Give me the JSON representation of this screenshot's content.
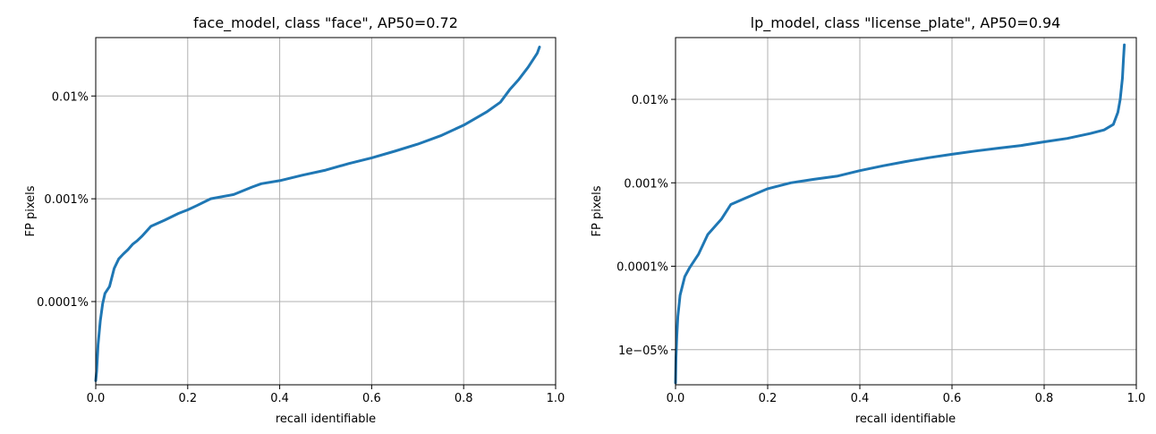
{
  "chart_data": [
    {
      "type": "line",
      "title": "face_model, class \"face\", AP50=0.72",
      "xlabel": "recall identifiable",
      "ylabel": "FP pixels",
      "xlim": [
        0.0,
        1.0
      ],
      "ylim": [
        1.55e-07,
        0.00037
      ],
      "yscale": "log",
      "grid": true,
      "line_color": "#1f77b4",
      "xticks": [
        0.0,
        0.2,
        0.4,
        0.6,
        0.8,
        1.0
      ],
      "xtick_labels": [
        "0.0",
        "0.2",
        "0.4",
        "0.6",
        "0.8",
        "1.0"
      ],
      "yticks": [
        1e-06,
        1e-05,
        0.0001
      ],
      "ytick_labels": [
        "0.0001%",
        "0.001%",
        "0.01%"
      ],
      "series": [
        {
          "x": [
            0.0,
            0.002,
            0.005,
            0.01,
            0.015,
            0.02,
            0.03,
            0.04,
            0.05,
            0.06,
            0.07,
            0.08,
            0.09,
            0.1,
            0.12,
            0.15,
            0.18,
            0.2,
            0.22,
            0.25,
            0.3,
            0.34,
            0.36,
            0.4,
            0.45,
            0.5,
            0.55,
            0.6,
            0.65,
            0.7,
            0.75,
            0.8,
            0.85,
            0.88,
            0.9,
            0.92,
            0.94,
            0.96,
            0.965
          ],
          "y": [
            1.7e-07,
            2.1e-07,
            3.8e-07,
            6.5e-07,
            9.5e-07,
            1.2e-06,
            1.4e-06,
            2.1e-06,
            2.6e-06,
            2.9e-06,
            3.2e-06,
            3.6e-06,
            3.9e-06,
            4.3e-06,
            5.4e-06,
            6.2e-06,
            7.2e-06,
            7.8e-06,
            8.6e-06,
            1e-05,
            1.1e-05,
            1.3e-05,
            1.4e-05,
            1.5e-05,
            1.7e-05,
            1.9e-05,
            2.2e-05,
            2.5e-05,
            2.9e-05,
            3.4e-05,
            4.1e-05,
            5.2e-05,
            7e-05,
            8.7e-05,
            0.000115,
            0.000145,
            0.00019,
            0.00026,
            0.0003
          ]
        }
      ]
    },
    {
      "type": "line",
      "title": "lp_model, class \"license_plate\", AP50=0.94",
      "xlabel": "recall identifiable",
      "ylabel": "FP pixels",
      "xlim": [
        0.0,
        1.0
      ],
      "ylim": [
        3.8e-08,
        0.00055
      ],
      "yscale": "log",
      "grid": true,
      "line_color": "#1f77b4",
      "xticks": [
        0.0,
        0.2,
        0.4,
        0.6,
        0.8,
        1.0
      ],
      "xtick_labels": [
        "0.0",
        "0.2",
        "0.4",
        "0.6",
        "0.8",
        "1.0"
      ],
      "yticks": [
        1e-07,
        1e-06,
        1e-05,
        0.0001
      ],
      "ytick_labels": [
        "1e−05%",
        "0.0001%",
        "0.001%",
        "0.01%"
      ],
      "series": [
        {
          "x": [
            0.0,
            0.001,
            0.003,
            0.005,
            0.01,
            0.02,
            0.03,
            0.05,
            0.07,
            0.1,
            0.12,
            0.15,
            0.2,
            0.25,
            0.3,
            0.35,
            0.4,
            0.45,
            0.5,
            0.55,
            0.6,
            0.65,
            0.7,
            0.75,
            0.8,
            0.85,
            0.9,
            0.93,
            0.95,
            0.96,
            0.965,
            0.97,
            0.972,
            0.974
          ],
          "y": [
            4e-08,
            8e-08,
            1.5e-07,
            2.5e-07,
            4.5e-07,
            7.5e-07,
            9.5e-07,
            1.4e-06,
            2.4e-06,
            3.7e-06,
            5.5e-06,
            6.5e-06,
            8.5e-06,
            1e-05,
            1.1e-05,
            1.2e-05,
            1.4e-05,
            1.6e-05,
            1.8e-05,
            2e-05,
            2.2e-05,
            2.4e-05,
            2.6e-05,
            2.8e-05,
            3.1e-05,
            3.4e-05,
            3.9e-05,
            4.3e-05,
            5e-05,
            7e-05,
            0.0001,
            0.00018,
            0.0003,
            0.00045
          ]
        }
      ]
    }
  ]
}
